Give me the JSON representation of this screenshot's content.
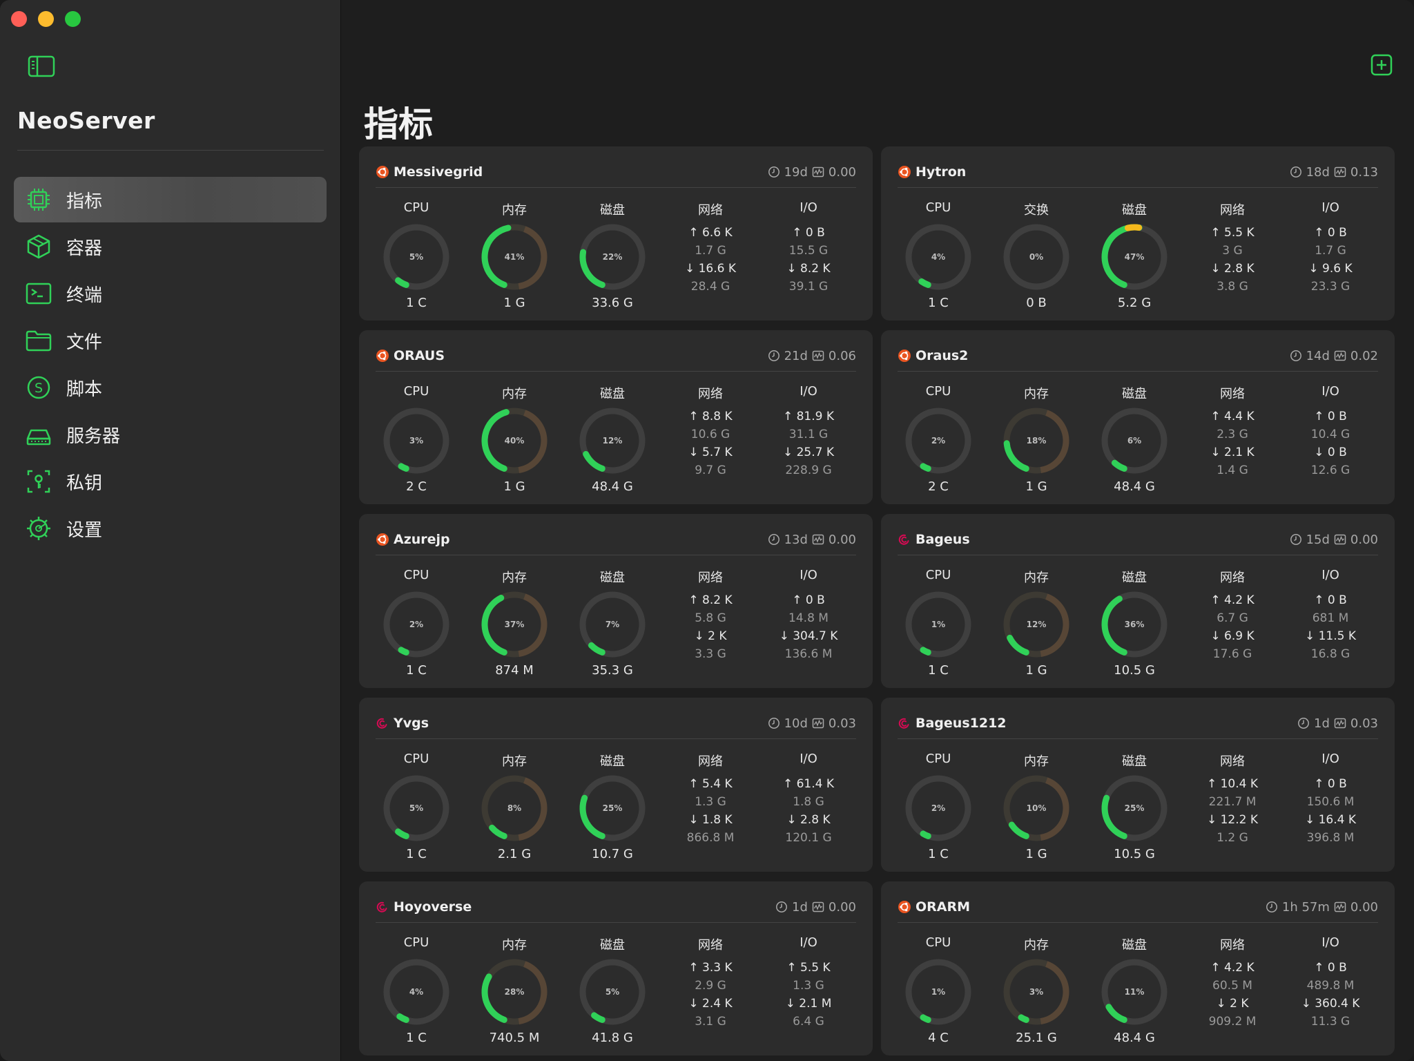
{
  "app": {
    "title": "NeoServer",
    "page_title": "指标"
  },
  "colors": {
    "accent": "#30d158",
    "track": "#3f3f3f",
    "ubuntu": "#e95420",
    "debian": "#d70a53"
  },
  "sidebar": {
    "items": [
      {
        "label": "指标",
        "icon": "chip-icon",
        "active": true
      },
      {
        "label": "容器",
        "icon": "cube-icon",
        "active": false
      },
      {
        "label": "终端",
        "icon": "terminal-icon",
        "active": false
      },
      {
        "label": "文件",
        "icon": "folder-icon",
        "active": false
      },
      {
        "label": "脚本",
        "icon": "script-icon",
        "active": false
      },
      {
        "label": "服务器",
        "icon": "server-icon",
        "active": false
      },
      {
        "label": "私钥",
        "icon": "key-icon",
        "active": false
      },
      {
        "label": "设置",
        "icon": "gear-icon",
        "active": false
      }
    ]
  },
  "servers": [
    {
      "name": "Messivegrid",
      "os": "ubuntu",
      "uptime": "19d",
      "load": "0.00",
      "gauges": [
        {
          "label": "CPU",
          "pct": 5,
          "pct_text": "5%",
          "sub": "1 C"
        },
        {
          "label": "内存",
          "pct": 41,
          "pct_text": "41%",
          "sub": "1 G",
          "warm": true
        },
        {
          "label": "磁盘",
          "pct": 22,
          "pct_text": "22%",
          "sub": "33.6 G"
        }
      ],
      "net": {
        "label": "网络",
        "lines": [
          "↑ 6.6 K",
          "1.7 G",
          "↓ 16.6 K",
          "28.4 G"
        ]
      },
      "io": {
        "label": "I/O",
        "lines": [
          "↑ 0 B",
          "15.5 G",
          "↓ 8.2 K",
          "39.1 G"
        ]
      }
    },
    {
      "name": "Hytron",
      "os": "ubuntu",
      "uptime": "18d",
      "load": "0.13",
      "gauges": [
        {
          "label": "CPU",
          "pct": 4,
          "pct_text": "4%",
          "sub": "1 C"
        },
        {
          "label": "交换",
          "pct": 0,
          "pct_text": "0%",
          "sub": "0 B"
        },
        {
          "label": "磁盘",
          "pct": 47,
          "pct_text": "47%",
          "sub": "5.2 G",
          "yellow_tip": true
        }
      ],
      "net": {
        "label": "网络",
        "lines": [
          "↑ 5.5 K",
          "3 G",
          "↓ 2.8 K",
          "3.8 G"
        ]
      },
      "io": {
        "label": "I/O",
        "lines": [
          "↑ 0 B",
          "1.7 G",
          "↓ 9.6 K",
          "23.3 G"
        ]
      }
    },
    {
      "name": "ORAUS",
      "os": "ubuntu",
      "uptime": "21d",
      "load": "0.06",
      "gauges": [
        {
          "label": "CPU",
          "pct": 3,
          "pct_text": "3%",
          "sub": "2 C"
        },
        {
          "label": "内存",
          "pct": 40,
          "pct_text": "40%",
          "sub": "1 G",
          "warm": true
        },
        {
          "label": "磁盘",
          "pct": 12,
          "pct_text": "12%",
          "sub": "48.4 G"
        }
      ],
      "net": {
        "label": "网络",
        "lines": [
          "↑ 8.8 K",
          "10.6 G",
          "↓ 5.7 K",
          "9.7 G"
        ]
      },
      "io": {
        "label": "I/O",
        "lines": [
          "↑ 81.9 K",
          "31.1 G",
          "↓ 25.7 K",
          "228.9 G"
        ]
      }
    },
    {
      "name": "Oraus2",
      "os": "ubuntu",
      "uptime": "14d",
      "load": "0.02",
      "gauges": [
        {
          "label": "CPU",
          "pct": 2,
          "pct_text": "2%",
          "sub": "2 C"
        },
        {
          "label": "内存",
          "pct": 18,
          "pct_text": "18%",
          "sub": "1 G",
          "warm": true
        },
        {
          "label": "磁盘",
          "pct": 6,
          "pct_text": "6%",
          "sub": "48.4 G"
        }
      ],
      "net": {
        "label": "网络",
        "lines": [
          "↑ 4.4 K",
          "2.3 G",
          "↓ 2.1 K",
          "1.4 G"
        ]
      },
      "io": {
        "label": "I/O",
        "lines": [
          "↑ 0 B",
          "10.4 G",
          "↓ 0 B",
          "12.6 G"
        ]
      }
    },
    {
      "name": "Azurejp",
      "os": "ubuntu",
      "uptime": "13d",
      "load": "0.00",
      "gauges": [
        {
          "label": "CPU",
          "pct": 2,
          "pct_text": "2%",
          "sub": "1 C"
        },
        {
          "label": "内存",
          "pct": 37,
          "pct_text": "37%",
          "sub": "874 M",
          "warm": true
        },
        {
          "label": "磁盘",
          "pct": 7,
          "pct_text": "7%",
          "sub": "35.3 G"
        }
      ],
      "net": {
        "label": "网络",
        "lines": [
          "↑ 8.2 K",
          "5.8 G",
          "↓ 2 K",
          "3.3 G"
        ]
      },
      "io": {
        "label": "I/O",
        "lines": [
          "↑ 0 B",
          "14.8 M",
          "↓ 304.7 K",
          "136.6 M"
        ]
      }
    },
    {
      "name": "Bageus",
      "os": "debian",
      "uptime": "15d",
      "load": "0.00",
      "gauges": [
        {
          "label": "CPU",
          "pct": 1,
          "pct_text": "1%",
          "sub": "1 C"
        },
        {
          "label": "内存",
          "pct": 12,
          "pct_text": "12%",
          "sub": "1 G",
          "warm": true
        },
        {
          "label": "磁盘",
          "pct": 36,
          "pct_text": "36%",
          "sub": "10.5 G"
        }
      ],
      "net": {
        "label": "网络",
        "lines": [
          "↑ 4.2 K",
          "6.7 G",
          "↓ 6.9 K",
          "17.6 G"
        ]
      },
      "io": {
        "label": "I/O",
        "lines": [
          "↑ 0 B",
          "681 M",
          "↓ 11.5 K",
          "16.8 G"
        ]
      }
    },
    {
      "name": "Yvgs",
      "os": "debian",
      "uptime": "10d",
      "load": "0.03",
      "gauges": [
        {
          "label": "CPU",
          "pct": 5,
          "pct_text": "5%",
          "sub": "1 C"
        },
        {
          "label": "内存",
          "pct": 8,
          "pct_text": "8%",
          "sub": "2.1 G",
          "warm": true
        },
        {
          "label": "磁盘",
          "pct": 25,
          "pct_text": "25%",
          "sub": "10.7 G"
        }
      ],
      "net": {
        "label": "网络",
        "lines": [
          "↑ 5.4 K",
          "1.3 G",
          "↓ 1.8 K",
          "866.8 M"
        ]
      },
      "io": {
        "label": "I/O",
        "lines": [
          "↑ 61.4 K",
          "1.8 G",
          "↓ 2.8 K",
          "120.1 G"
        ]
      }
    },
    {
      "name": "Bageus1212",
      "os": "debian",
      "uptime": "1d",
      "load": "0.03",
      "gauges": [
        {
          "label": "CPU",
          "pct": 2,
          "pct_text": "2%",
          "sub": "1 C"
        },
        {
          "label": "内存",
          "pct": 10,
          "pct_text": "10%",
          "sub": "1 G",
          "warm": true
        },
        {
          "label": "磁盘",
          "pct": 25,
          "pct_text": "25%",
          "sub": "10.5 G"
        }
      ],
      "net": {
        "label": "网络",
        "lines": [
          "↑ 10.4 K",
          "221.7 M",
          "↓ 12.2 K",
          "1.2 G"
        ]
      },
      "io": {
        "label": "I/O",
        "lines": [
          "↑ 0 B",
          "150.6 M",
          "↓ 16.4 K",
          "396.8 M"
        ]
      }
    },
    {
      "name": "Hoyoverse",
      "os": "debian",
      "uptime": "1d",
      "load": "0.00",
      "gauges": [
        {
          "label": "CPU",
          "pct": 4,
          "pct_text": "4%",
          "sub": "1 C"
        },
        {
          "label": "内存",
          "pct": 28,
          "pct_text": "28%",
          "sub": "740.5 M",
          "warm": true
        },
        {
          "label": "磁盘",
          "pct": 5,
          "pct_text": "5%",
          "sub": "41.8 G"
        }
      ],
      "net": {
        "label": "网络",
        "lines": [
          "↑ 3.3 K",
          "2.9 G",
          "↓ 2.4 K",
          "3.1 G"
        ]
      },
      "io": {
        "label": "I/O",
        "lines": [
          "↑ 5.5 K",
          "1.3 G",
          "↓ 2.1 M",
          "6.4 G"
        ]
      }
    },
    {
      "name": "ORARM",
      "os": "ubuntu",
      "uptime": "1h 57m",
      "load": "0.00",
      "gauges": [
        {
          "label": "CPU",
          "pct": 1,
          "pct_text": "1%",
          "sub": "4 C"
        },
        {
          "label": "内存",
          "pct": 3,
          "pct_text": "3%",
          "sub": "25.1 G",
          "warm": true
        },
        {
          "label": "磁盘",
          "pct": 11,
          "pct_text": "11%",
          "sub": "48.4 G"
        }
      ],
      "net": {
        "label": "网络",
        "lines": [
          "↑ 4.2 K",
          "60.5 M",
          "↓ 2 K",
          "909.2 M"
        ]
      },
      "io": {
        "label": "I/O",
        "lines": [
          "↑ 0 B",
          "489.8 M",
          "↓ 360.4 K",
          "11.3 G"
        ]
      }
    }
  ]
}
